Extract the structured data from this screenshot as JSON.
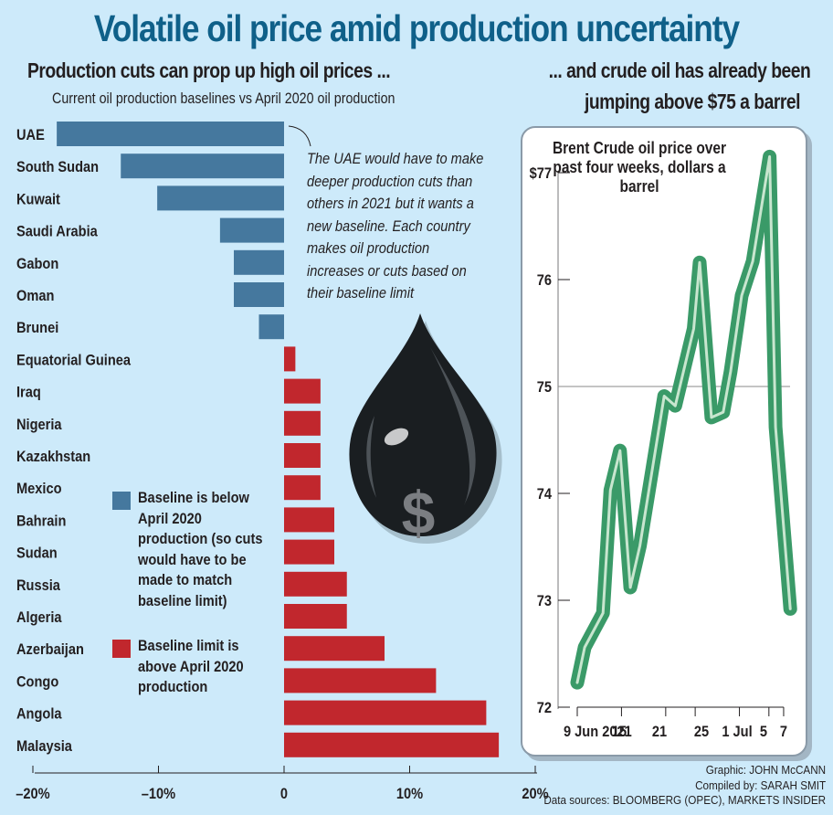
{
  "header": {
    "title": "Volatile oil price amid production uncertainty",
    "left_subtitle": "Production cuts can prop up high oil prices ...",
    "left_note": "Current oil production baselines vs April 2020 oil production",
    "right_subtitle_line1": "... and crude oil has already been",
    "right_subtitle_line2": "jumping above $75 a barrel"
  },
  "annotation": "The UAE would have to make deeper production cuts than others in 2021 but it wants a new baseline. Each country makes oil production increases or cuts based on their baseline limit",
  "legend": {
    "below": "Baseline is below April 2020 production (so cuts would have to be made to match baseline limit)",
    "above": "Baseline limit is above April 2020 production"
  },
  "colors": {
    "below": "#45789e",
    "above": "#c1272d",
    "line": "#3a9a68",
    "line_highlight": "#c8e6cf",
    "title": "#0f6089",
    "background": "#cdeafa"
  },
  "credits": {
    "graphic": "Graphic: JOHN McCANN",
    "compiled": "Compiled by: SARAH SMIT",
    "sources": "Data sources: BLOOMBERG (OPEC), MARKETS INSIDER"
  },
  "chart_data": [
    {
      "type": "bar",
      "orientation": "horizontal",
      "title": "Current oil production baselines vs April 2020 oil production",
      "xlabel": "",
      "ylabel": "",
      "xlim": [
        -20,
        20
      ],
      "x_ticks": [
        "–20%",
        "–10%",
        "0",
        "10%",
        "20%"
      ],
      "x_tick_values": [
        -20,
        -10,
        0,
        10,
        20
      ],
      "grid": false,
      "legend_position": "left-middle",
      "categories": [
        "UAE",
        "South Sudan",
        "Kuwait",
        "Saudi Arabia",
        "Gabon",
        "Oman",
        "Brunei",
        "Equatorial Guinea",
        "Iraq",
        "Nigeria",
        "Kazakhstan",
        "Mexico",
        "Bahrain",
        "Sudan",
        "Russia",
        "Algeria",
        "Azerbaijan",
        "Congo",
        "Angola",
        "Malaysia"
      ],
      "values": [
        -18.1,
        -13.0,
        -10.1,
        -5.1,
        -4.0,
        -4.0,
        -2.0,
        0.9,
        2.9,
        2.9,
        2.9,
        2.9,
        4.0,
        4.0,
        5.0,
        5.0,
        8.0,
        12.1,
        16.1,
        17.1
      ],
      "unit": "%"
    },
    {
      "type": "line",
      "title": "Brent Crude oil price over past four weeks, dollars a barrel",
      "xlabel": "",
      "ylabel": "",
      "ylim": [
        72,
        77
      ],
      "y_ticks": [
        "72",
        "73",
        "74",
        "75",
        "76",
        "$77"
      ],
      "y_tick_values": [
        72,
        73,
        74,
        75,
        76,
        77
      ],
      "reference_line": 75,
      "x_ticks": [
        "9 Jun 2021",
        "15",
        "21",
        "25",
        "1 Jul",
        "5",
        "7"
      ],
      "x_tick_days": [
        0,
        6,
        12,
        16,
        22,
        26,
        28
      ],
      "series": [
        {
          "name": "Brent Crude",
          "x_days": [
            0,
            1,
            3.5,
            4.5,
            5.8,
            7.2,
            8.5,
            11.8,
            13.3,
            15.8,
            16.6,
            18.2,
            19.8,
            20.8,
            22.3,
            23.8,
            26.1,
            26.9,
            28.9
          ],
          "values": [
            72.23,
            72.56,
            72.88,
            74.03,
            74.4,
            73.12,
            73.51,
            74.91,
            74.82,
            75.54,
            76.16,
            74.71,
            74.76,
            75.14,
            75.85,
            76.17,
            77.15,
            74.62,
            72.92
          ]
        }
      ]
    }
  ]
}
